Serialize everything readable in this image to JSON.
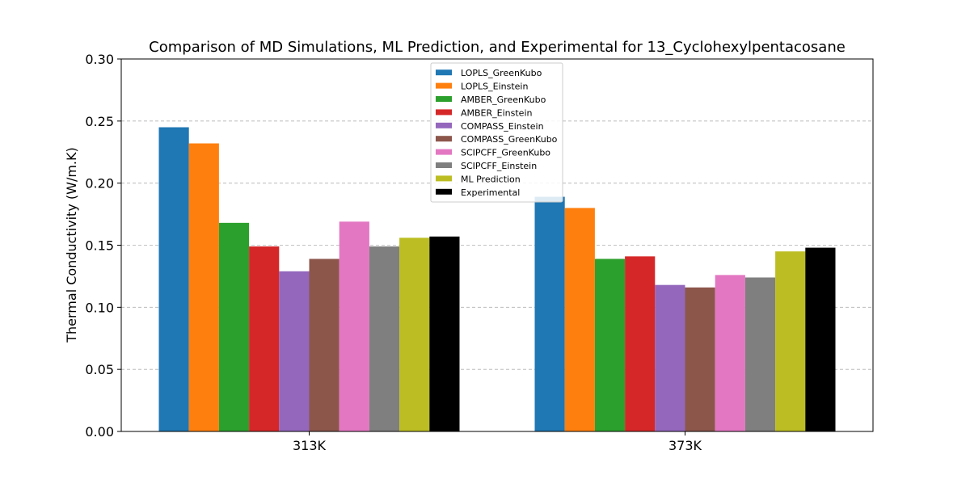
{
  "chart_data": {
    "type": "bar",
    "title": "Comparison of MD Simulations, ML Prediction, and Experimental for 13_Cyclohexylpentacosane",
    "xlabel": "",
    "ylabel": "Thermal Conductivity (W/m.K)",
    "categories": [
      "313K",
      "373K"
    ],
    "ylim": [
      0,
      0.3
    ],
    "yticks": [
      0.0,
      0.05,
      0.1,
      0.15,
      0.2,
      0.25,
      0.3
    ],
    "ytick_labels": [
      "0.00",
      "0.05",
      "0.10",
      "0.15",
      "0.20",
      "0.25",
      "0.30"
    ],
    "grid": "y-dashed",
    "legend_position": "top-center",
    "series": [
      {
        "name": "LOPLS_GreenKubo",
        "color": "#1f77b4",
        "values": [
          0.245,
          0.189
        ]
      },
      {
        "name": "LOPLS_Einstein",
        "color": "#ff7f0e",
        "values": [
          0.232,
          0.18
        ]
      },
      {
        "name": "AMBER_GreenKubo",
        "color": "#2ca02c",
        "values": [
          0.168,
          0.139
        ]
      },
      {
        "name": "AMBER_Einstein",
        "color": "#d62728",
        "values": [
          0.149,
          0.141
        ]
      },
      {
        "name": "COMPASS_Einstein",
        "color": "#9467bd",
        "values": [
          0.129,
          0.118
        ]
      },
      {
        "name": "COMPASS_GreenKubo",
        "color": "#8c564b",
        "values": [
          0.139,
          0.116
        ]
      },
      {
        "name": "SCIPCFF_GreenKubo",
        "color": "#e377c2",
        "values": [
          0.169,
          0.126
        ]
      },
      {
        "name": "SCIPCFF_Einstein",
        "color": "#7f7f7f",
        "values": [
          0.149,
          0.124
        ]
      },
      {
        "name": "ML Prediction",
        "color": "#bcbd22",
        "values": [
          0.156,
          0.145
        ]
      },
      {
        "name": "Experimental",
        "color": "#000000",
        "values": [
          0.157,
          0.148
        ]
      }
    ]
  }
}
